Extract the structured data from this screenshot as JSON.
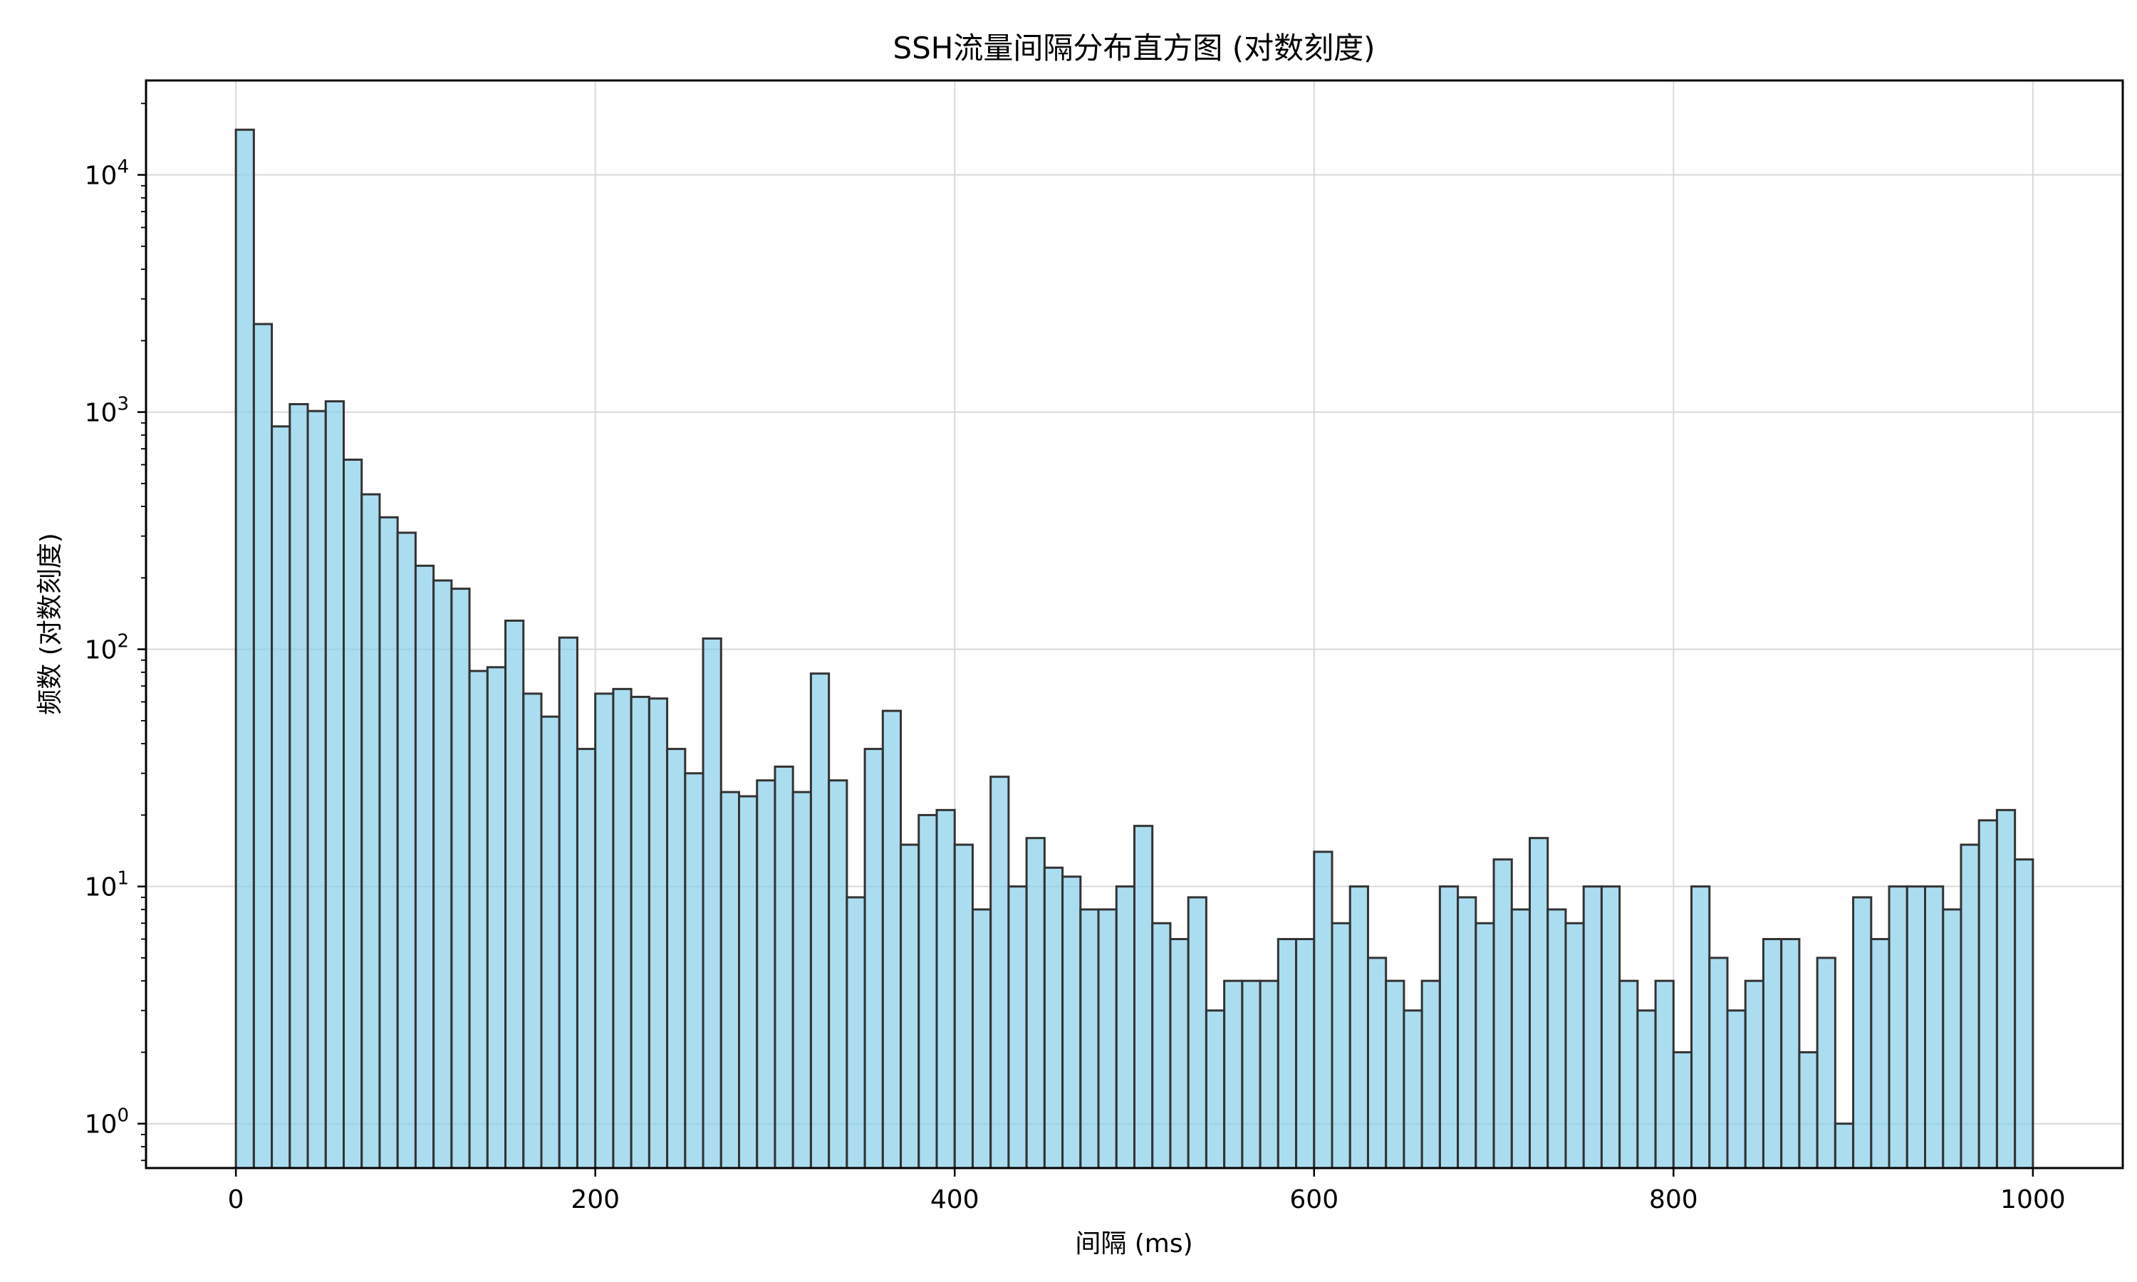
{
  "chart_data": {
    "type": "bar",
    "title": "SSH流量间隔分布直方图 (对数刻度)",
    "xlabel": "间隔 (ms)",
    "ylabel": "频数 (对数刻度)",
    "yscale": "log",
    "ylim": [
      0.65,
      25000
    ],
    "xlim": [
      -50,
      1050
    ],
    "bin_width": 10,
    "bin_start": 0,
    "bar_color": "#87CEEB",
    "edge_color": "#333333",
    "grid": true,
    "x_ticks": [
      {
        "value": 0,
        "label": "0"
      },
      {
        "value": 200,
        "label": "200"
      },
      {
        "value": 400,
        "label": "400"
      },
      {
        "value": 600,
        "label": "600"
      },
      {
        "value": 800,
        "label": "800"
      },
      {
        "value": 1000,
        "label": "1000"
      }
    ],
    "y_ticks": [
      {
        "value": 1,
        "base": "10",
        "exp": "0"
      },
      {
        "value": 10,
        "base": "10",
        "exp": "1"
      },
      {
        "value": 100,
        "base": "10",
        "exp": "2"
      },
      {
        "value": 1000,
        "base": "10",
        "exp": "3"
      },
      {
        "value": 10000,
        "base": "10",
        "exp": "4"
      }
    ],
    "values": [
      15500,
      2350,
      870,
      1080,
      1010,
      1110,
      630,
      450,
      360,
      310,
      225,
      195,
      180,
      81,
      84,
      132,
      65,
      52,
      112,
      38,
      65,
      68,
      63,
      62,
      38,
      30,
      111,
      25,
      24,
      28,
      32,
      25,
      79,
      28,
      9,
      38,
      55,
      15,
      20,
      21,
      15,
      8,
      29,
      10,
      16,
      12,
      11,
      8,
      8,
      10,
      18,
      7,
      6,
      9,
      3,
      4,
      4,
      4,
      6,
      6,
      14,
      7,
      10,
      5,
      4,
      3,
      4,
      10,
      9,
      7,
      13,
      8,
      16,
      8,
      7,
      10,
      10,
      4,
      3,
      4,
      2,
      10,
      5,
      3,
      4,
      6,
      6,
      2,
      5,
      1,
      9,
      6,
      10,
      10,
      10,
      8,
      15,
      19,
      21,
      13
    ]
  }
}
